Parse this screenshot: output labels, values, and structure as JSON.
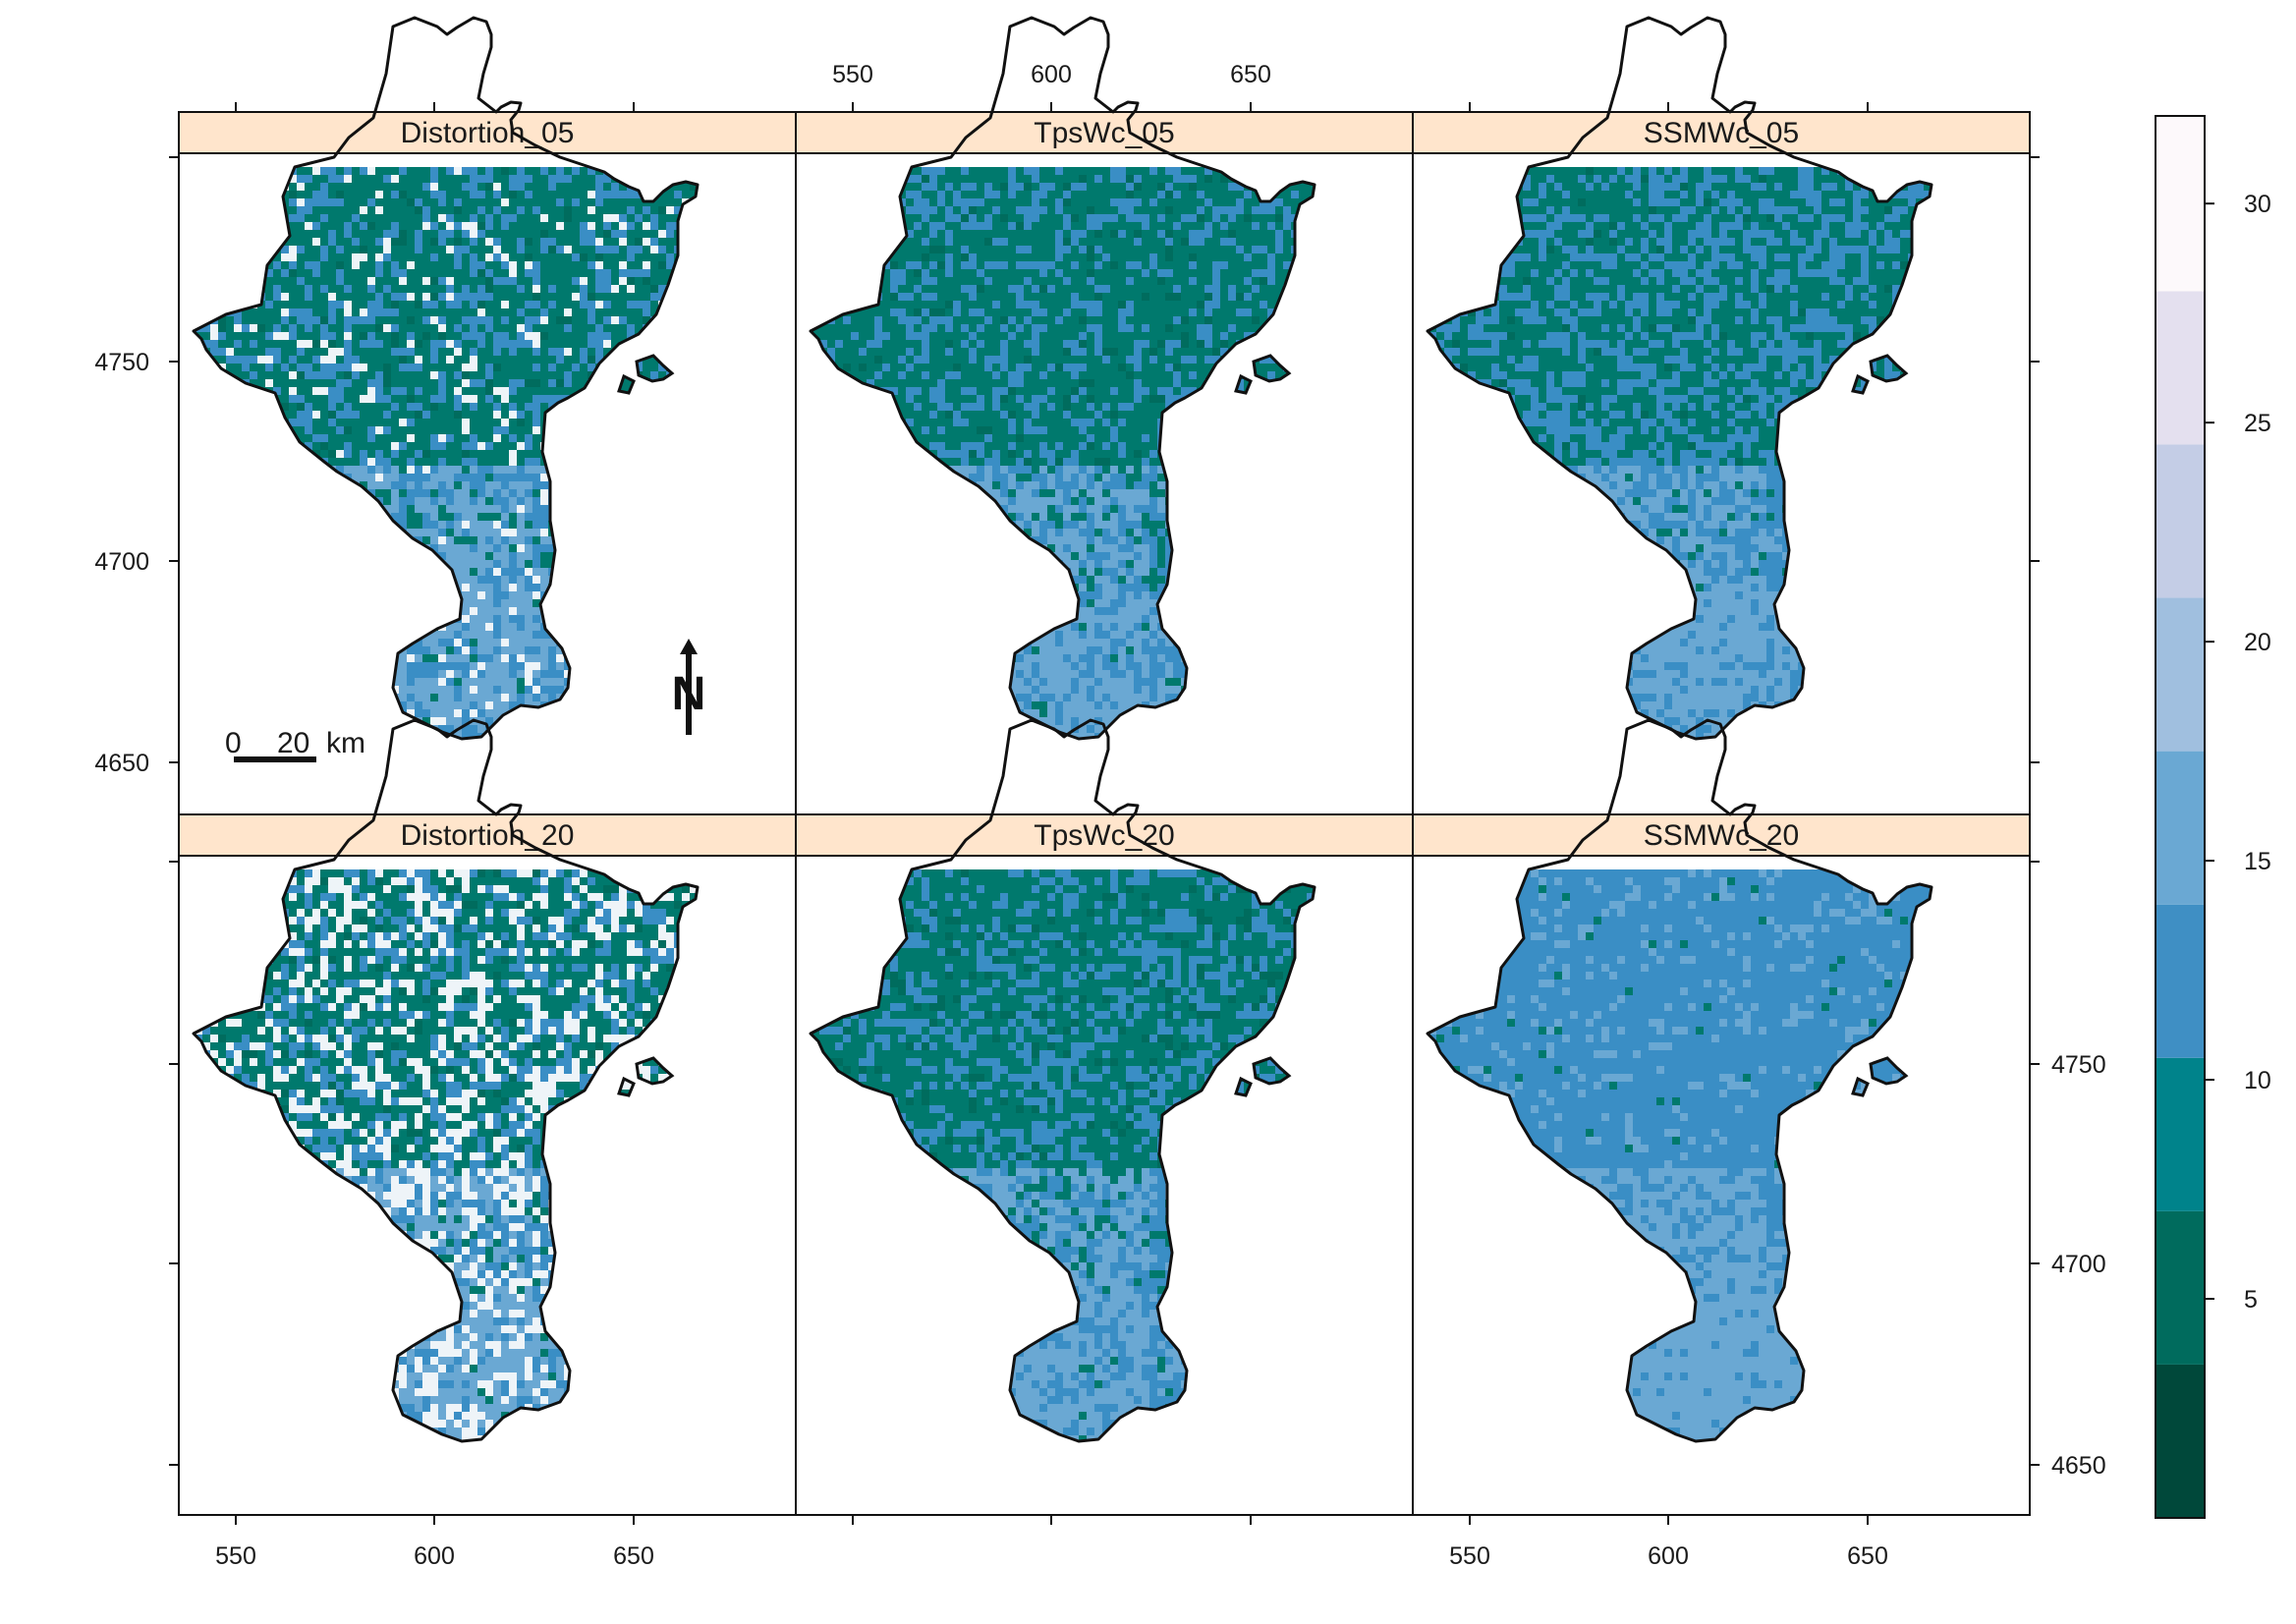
{
  "panels": [
    {
      "label": "Distortion_05",
      "noise": 0.085,
      "weights": {
        "north": [
          0.05,
          0.62,
          0.33,
          0.0
        ],
        "mid": [
          0.0,
          0.22,
          0.58,
          0.2
        ],
        "south": [
          0.0,
          0.05,
          0.45,
          0.5
        ]
      }
    },
    {
      "label": "TpsWc_05",
      "noise": 0.0,
      "weights": {
        "north": [
          0.06,
          0.62,
          0.32,
          0.0
        ],
        "mid": [
          0.0,
          0.28,
          0.57,
          0.15
        ],
        "south": [
          0.0,
          0.05,
          0.55,
          0.4
        ]
      }
    },
    {
      "label": "SSMWc_05",
      "noise": 0.0,
      "weights": {
        "north": [
          0.02,
          0.55,
          0.43,
          0.0
        ],
        "mid": [
          0.0,
          0.1,
          0.7,
          0.2
        ],
        "south": [
          0.0,
          0.0,
          0.35,
          0.65
        ]
      }
    },
    {
      "label": "Distortion_20",
      "noise": 0.28,
      "weights": {
        "north": [
          0.05,
          0.58,
          0.37,
          0.0
        ],
        "mid": [
          0.0,
          0.25,
          0.5,
          0.25
        ],
        "south": [
          0.0,
          0.05,
          0.4,
          0.55
        ]
      }
    },
    {
      "label": "TpsWc_20",
      "noise": 0.0,
      "weights": {
        "north": [
          0.08,
          0.6,
          0.32,
          0.0
        ],
        "mid": [
          0.0,
          0.25,
          0.55,
          0.2
        ],
        "south": [
          0.0,
          0.03,
          0.55,
          0.42
        ]
      }
    },
    {
      "label": "SSMWc_20",
      "noise": 0.0,
      "weights": {
        "north": [
          0.0,
          0.02,
          0.83,
          0.15
        ],
        "mid": [
          0.0,
          0.0,
          0.5,
          0.5
        ],
        "south": [
          0.0,
          0.0,
          0.12,
          0.88
        ]
      }
    }
  ],
  "axes": {
    "x_ticks": [
      "550",
      "600",
      "650"
    ],
    "y_ticks": [
      "4650",
      "4700",
      "4750"
    ]
  },
  "scale_bar": {
    "zero": "0",
    "distance": "20",
    "unit": "km"
  },
  "north_arrow": {
    "letter": "N"
  },
  "legend": {
    "ticks": [
      "5",
      "10",
      "15",
      "20",
      "25",
      "30"
    ],
    "colors": [
      "#00483a",
      "#006b5d",
      "#00838b",
      "#3f8fc4",
      "#6aa8d3",
      "#a0bfdf",
      "#c4cde6",
      "#e4e0ef",
      "#fdf9fb"
    ]
  },
  "colors": {
    "strip": "#ffe5cc",
    "north_dark": "#006c5e",
    "north": "#00796d",
    "mid": "#3a8ec5",
    "south": "#6aa8d3",
    "noise": "#eef4f8",
    "outline": "#111111"
  }
}
